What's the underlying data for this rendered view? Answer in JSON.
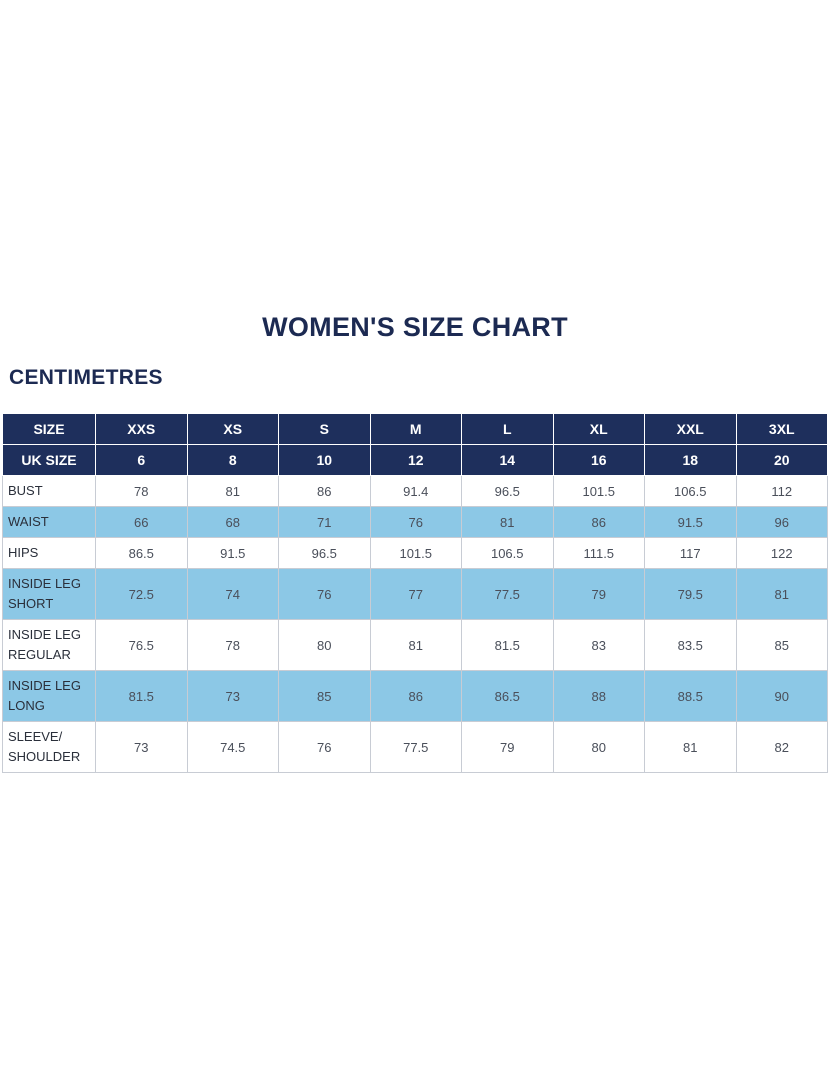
{
  "title": "WOMEN'S SIZE CHART",
  "section": "CENTIMETRES",
  "header_rows": [
    [
      "SIZE",
      "XXS",
      "XS",
      "S",
      "M",
      "L",
      "XL",
      "XXL",
      "3XL"
    ],
    [
      "UK SIZE",
      "6",
      "8",
      "10",
      "12",
      "14",
      "16",
      "18",
      "20"
    ]
  ],
  "body_rows": [
    {
      "label": [
        "BUST"
      ],
      "values": [
        "78",
        "81",
        "86",
        "91.4",
        "96.5",
        "101.5",
        "106.5",
        "112"
      ],
      "style": "white"
    },
    {
      "label": [
        "WAIST"
      ],
      "values": [
        "66",
        "68",
        "71",
        "76",
        "81",
        "86",
        "91.5",
        "96"
      ],
      "style": "blue"
    },
    {
      "label": [
        "HIPS"
      ],
      "values": [
        "86.5",
        "91.5",
        "96.5",
        "101.5",
        "106.5",
        "111.5",
        "117",
        "122"
      ],
      "style": "white"
    },
    {
      "label": [
        "INSIDE LEG",
        "SHORT"
      ],
      "values": [
        "72.5",
        "74",
        "76",
        "77",
        "77.5",
        "79",
        "79.5",
        "81"
      ],
      "style": "blue"
    },
    {
      "label": [
        "INSIDE LEG",
        "REGULAR"
      ],
      "values": [
        "76.5",
        "78",
        "80",
        "81",
        "81.5",
        "83",
        "83.5",
        "85"
      ],
      "style": "white"
    },
    {
      "label": [
        "INSIDE LEG",
        "LONG"
      ],
      "values": [
        "81.5",
        "73",
        "85",
        "86",
        "86.5",
        "88",
        "88.5",
        "90"
      ],
      "style": "blue"
    },
    {
      "label": [
        "SLEEVE/",
        "SHOULDER"
      ],
      "values": [
        "73",
        "74.5",
        "76",
        "77.5",
        "79",
        "80",
        "81",
        "82"
      ],
      "style": "white"
    }
  ],
  "colors": {
    "header_bg": "#1e2f5c",
    "stripe_bg": "#8cc8e6",
    "title_color": "#1c2a52"
  }
}
